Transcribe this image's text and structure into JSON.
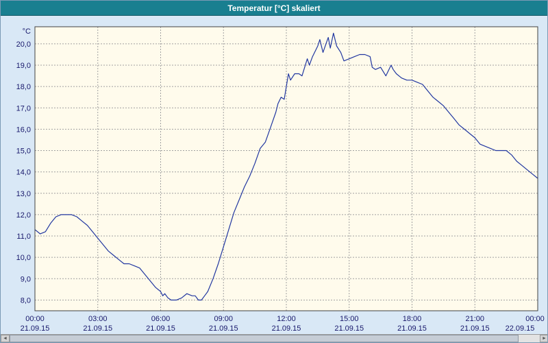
{
  "window": {
    "title": "Temperatur [°C] skaliert"
  },
  "scrollbar": {
    "left_arrow": "◄",
    "right_arrow": "►"
  },
  "chart_data": {
    "type": "line",
    "title": "Temperatur [°C] skaliert",
    "xlabel": "",
    "ylabel": "°C",
    "grid": "dashed",
    "legend": "none",
    "xlim": [
      0,
      24
    ],
    "ylim": [
      7.5,
      20.8
    ],
    "y_ticks": [
      8,
      9,
      10,
      11,
      12,
      13,
      14,
      15,
      16,
      17,
      18,
      19,
      20
    ],
    "y_tick_labels": [
      "8,0",
      "9,0",
      "10,0",
      "11,0",
      "12,0",
      "13,0",
      "14,0",
      "15,0",
      "16,0",
      "17,0",
      "18,0",
      "19,0",
      "20,0"
    ],
    "x_ticks": [
      0,
      3,
      6,
      9,
      12,
      15,
      18,
      21,
      24
    ],
    "x_tick_labels": [
      "00:00",
      "03:00",
      "06:00",
      "09:00",
      "12:00",
      "15:00",
      "18:00",
      "21:00",
      "00:00"
    ],
    "x_tick_dates": [
      "21.09.15",
      "21.09.15",
      "21.09.15",
      "21.09.15",
      "21.09.15",
      "21.09.15",
      "21.09.15",
      "21.09.15",
      "22.09.15"
    ],
    "colors": {
      "titlebar": "#197f90",
      "outer_bg": "#d9e8f6",
      "plot_bg": "#fffbec",
      "grid": "#a0a0a0",
      "plot_border": "#404040",
      "line": "#2136a0"
    },
    "series": [
      {
        "name": "Temperatur",
        "color": "#2136a0",
        "points": [
          [
            0.0,
            11.3
          ],
          [
            0.25,
            11.1
          ],
          [
            0.5,
            11.2
          ],
          [
            0.75,
            11.6
          ],
          [
            1.0,
            11.9
          ],
          [
            1.25,
            12.0
          ],
          [
            1.5,
            12.0
          ],
          [
            1.75,
            12.0
          ],
          [
            2.0,
            11.9
          ],
          [
            2.25,
            11.7
          ],
          [
            2.5,
            11.5
          ],
          [
            2.75,
            11.2
          ],
          [
            3.0,
            10.9
          ],
          [
            3.25,
            10.6
          ],
          [
            3.5,
            10.3
          ],
          [
            3.75,
            10.1
          ],
          [
            4.0,
            9.9
          ],
          [
            4.25,
            9.7
          ],
          [
            4.5,
            9.7
          ],
          [
            4.75,
            9.6
          ],
          [
            5.0,
            9.5
          ],
          [
            5.25,
            9.2
          ],
          [
            5.5,
            8.9
          ],
          [
            5.75,
            8.6
          ],
          [
            6.0,
            8.4
          ],
          [
            6.1,
            8.2
          ],
          [
            6.2,
            8.3
          ],
          [
            6.35,
            8.1
          ],
          [
            6.5,
            8.0
          ],
          [
            6.75,
            8.0
          ],
          [
            7.0,
            8.1
          ],
          [
            7.25,
            8.3
          ],
          [
            7.5,
            8.2
          ],
          [
            7.65,
            8.2
          ],
          [
            7.8,
            8.0
          ],
          [
            7.95,
            8.0
          ],
          [
            8.1,
            8.2
          ],
          [
            8.25,
            8.4
          ],
          [
            8.5,
            9.0
          ],
          [
            8.75,
            9.7
          ],
          [
            9.0,
            10.5
          ],
          [
            9.25,
            11.3
          ],
          [
            9.5,
            12.1
          ],
          [
            9.75,
            12.7
          ],
          [
            10.0,
            13.3
          ],
          [
            10.25,
            13.8
          ],
          [
            10.5,
            14.4
          ],
          [
            10.75,
            15.1
          ],
          [
            11.0,
            15.4
          ],
          [
            11.25,
            16.1
          ],
          [
            11.5,
            16.8
          ],
          [
            11.6,
            17.2
          ],
          [
            11.75,
            17.5
          ],
          [
            11.9,
            17.4
          ],
          [
            12.0,
            18.0
          ],
          [
            12.1,
            18.6
          ],
          [
            12.2,
            18.3
          ],
          [
            12.4,
            18.6
          ],
          [
            12.6,
            18.6
          ],
          [
            12.75,
            18.5
          ],
          [
            13.0,
            19.3
          ],
          [
            13.1,
            19.0
          ],
          [
            13.25,
            19.4
          ],
          [
            13.5,
            19.9
          ],
          [
            13.6,
            20.2
          ],
          [
            13.75,
            19.6
          ],
          [
            14.0,
            20.3
          ],
          [
            14.1,
            19.8
          ],
          [
            14.25,
            20.5
          ],
          [
            14.4,
            19.9
          ],
          [
            14.6,
            19.6
          ],
          [
            14.75,
            19.2
          ],
          [
            15.0,
            19.3
          ],
          [
            15.25,
            19.4
          ],
          [
            15.5,
            19.5
          ],
          [
            15.75,
            19.5
          ],
          [
            16.0,
            19.4
          ],
          [
            16.1,
            18.9
          ],
          [
            16.25,
            18.8
          ],
          [
            16.5,
            18.9
          ],
          [
            16.75,
            18.5
          ],
          [
            17.0,
            19.0
          ],
          [
            17.1,
            18.8
          ],
          [
            17.25,
            18.6
          ],
          [
            17.5,
            18.4
          ],
          [
            17.75,
            18.3
          ],
          [
            18.0,
            18.3
          ],
          [
            18.25,
            18.2
          ],
          [
            18.5,
            18.1
          ],
          [
            18.75,
            17.8
          ],
          [
            19.0,
            17.5
          ],
          [
            19.25,
            17.3
          ],
          [
            19.5,
            17.1
          ],
          [
            19.75,
            16.8
          ],
          [
            20.0,
            16.5
          ],
          [
            20.25,
            16.2
          ],
          [
            20.5,
            16.0
          ],
          [
            20.75,
            15.8
          ],
          [
            21.0,
            15.6
          ],
          [
            21.25,
            15.3
          ],
          [
            21.5,
            15.2
          ],
          [
            21.75,
            15.1
          ],
          [
            22.0,
            15.0
          ],
          [
            22.25,
            15.0
          ],
          [
            22.5,
            15.0
          ],
          [
            22.75,
            14.8
          ],
          [
            23.0,
            14.5
          ],
          [
            23.25,
            14.3
          ],
          [
            23.5,
            14.1
          ],
          [
            23.75,
            13.9
          ],
          [
            24.0,
            13.7
          ]
        ]
      }
    ]
  }
}
